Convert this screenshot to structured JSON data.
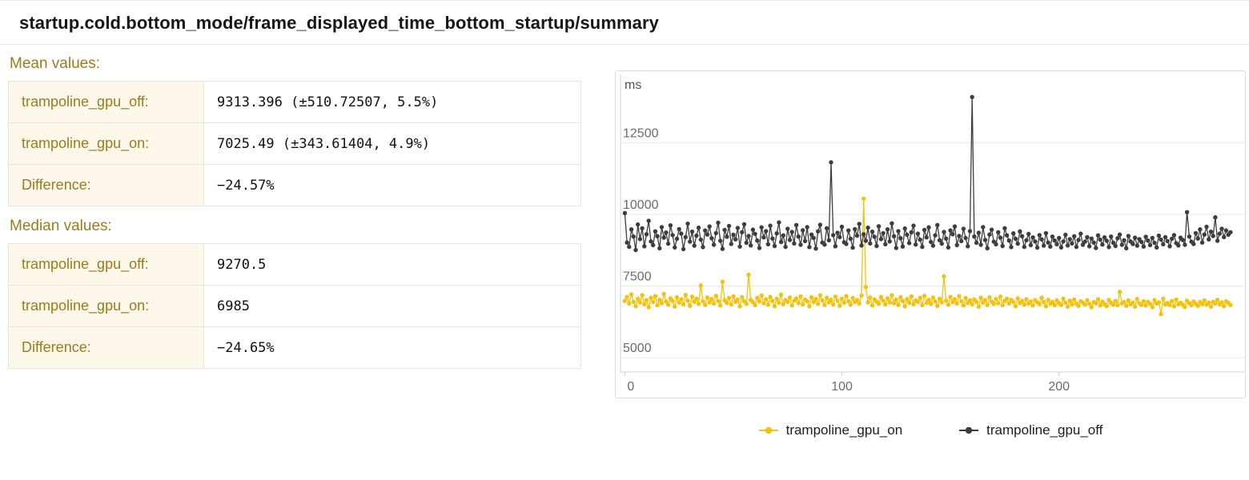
{
  "header": {
    "title": "startup.cold.bottom_mode/frame_displayed_time_bottom_startup/summary"
  },
  "sections": {
    "mean": {
      "heading": "Mean values:",
      "rows": [
        {
          "label": "trampoline_gpu_off:",
          "value": "9313.396 (±510.72507, 5.5%)"
        },
        {
          "label": "trampoline_gpu_on:",
          "value": "7025.49 (±343.61404, 4.9%)"
        },
        {
          "label": "Difference:",
          "value": "−24.57%"
        }
      ]
    },
    "median": {
      "heading": "Median values:",
      "rows": [
        {
          "label": "trampoline_gpu_off:",
          "value": "9270.5"
        },
        {
          "label": "trampoline_gpu_on:",
          "value": "6985"
        },
        {
          "label": "Difference:",
          "value": "−24.65%"
        }
      ]
    }
  },
  "chart_data": {
    "type": "line",
    "title": "",
    "xlabel": "",
    "ylabel": "ms",
    "xlim": [
      -2,
      282
    ],
    "ylim": [
      4500,
      14500
    ],
    "yticks": [
      5000,
      7500,
      10000,
      12500
    ],
    "xticks": [
      0,
      100,
      200
    ],
    "grid": true,
    "legend_position": "bottom",
    "colors": {
      "gpu_on": "#f4c20d",
      "gpu_off": "#3d3d3d",
      "grid": "#e6e6e6",
      "axis": "#cfcfcf",
      "tick_text": "#6b6b6b"
    },
    "series": [
      {
        "name": "trampoline_gpu_on",
        "color": "#f4c20d",
        "values": [
          6980,
          7120,
          6890,
          7210,
          6950,
          6800,
          7060,
          6930,
          7180,
          6870,
          7010,
          6760,
          7090,
          6940,
          7150,
          6830,
          7020,
          6900,
          7230,
          6960,
          6850,
          7070,
          6980,
          6780,
          7110,
          6920,
          7040,
          6860,
          7190,
          6990,
          6810,
          7130,
          6950,
          7060,
          6880,
          7520,
          6970,
          6840,
          7100,
          6930,
          7050,
          6890,
          7160,
          6980,
          6820,
          7650,
          7000,
          6910,
          7080,
          6860,
          7140,
          6950,
          7030,
          6790,
          7110,
          6970,
          6880,
          7900,
          7020,
          6940,
          6830,
          7090,
          6960,
          7170,
          6900,
          7040,
          6850,
          7120,
          6980,
          6800,
          7060,
          6920,
          7200,
          6870,
          7010,
          6950,
          7100,
          6820,
          6990,
          7070,
          6910,
          7140,
          6860,
          7030,
          6970,
          6790,
          7110,
          6940,
          7050,
          6880,
          7180,
          7000,
          6840,
          7090,
          6930,
          7020,
          6860,
          7130,
          6990,
          6810,
          7060,
          6920,
          7150,
          6970,
          6850,
          7080,
          6940,
          7010,
          6890,
          7170,
          10550,
          7470,
          6930,
          7100,
          6820,
          7040,
          6960,
          6880,
          7120,
          6990,
          6860,
          7070,
          6930,
          7180,
          6900,
          7030,
          6840,
          7110,
          6980,
          6790,
          7050,
          6920,
          7140,
          6870,
          7000,
          6950,
          7090,
          6830,
          7160,
          6910,
          7020,
          6880,
          7100,
          6960,
          6810,
          7060,
          6930,
          7840,
          6990,
          6850,
          7120,
          6940,
          7040,
          6890,
          7150,
          6970,
          6820,
          7080,
          6910,
          7000,
          6860,
          7030,
          6950,
          6780,
          7090,
          6920,
          7010,
          6840,
          7110,
          6960,
          6880,
          7050,
          6900,
          7130,
          6830,
          6980,
          7060,
          6890,
          7020,
          6940,
          6800,
          7070,
          6910,
          6980,
          6850,
          7040,
          6890,
          6960,
          6820,
          7010,
          6930,
          6870,
          7090,
          6940,
          6790,
          7020,
          6880,
          6950,
          6830,
          7000,
          6900,
          6840,
          7060,
          6920,
          6780,
          6990,
          6860,
          7030,
          6890,
          6810,
          6970,
          6920,
          6850,
          7010,
          6880,
          6760,
          6940,
          6900,
          7040,
          6820,
          6960,
          6870,
          6800,
          7020,
          6910,
          6850,
          6980,
          6830,
          7300,
          6890,
          6940,
          6810,
          7000,
          6870,
          6920,
          6780,
          7050,
          6900,
          6840,
          6970,
          6820,
          6950,
          6880,
          6760,
          7010,
          6890,
          6930,
          6520,
          7060,
          6860,
          6910,
          6840,
          6980,
          6790,
          7030,
          6870,
          6920,
          6850,
          6770,
          6990,
          6900,
          6830,
          6960,
          6880,
          6810,
          6940,
          6870,
          7000,
          6850,
          6920,
          6780,
          6950,
          6890,
          7020,
          6860,
          6930,
          6800,
          6970,
          6910,
          6840
        ]
      },
      {
        "name": "trampoline_gpu_off",
        "color": "#3d3d3d",
        "values": [
          10050,
          9020,
          8870,
          9480,
          9230,
          8760,
          9650,
          9140,
          9520,
          8890,
          9310,
          9780,
          9060,
          8930,
          9410,
          9240,
          8820,
          9560,
          9190,
          9370,
          8980,
          9620,
          9280,
          8850,
          9150,
          9490,
          9330,
          8790,
          9210,
          9680,
          9050,
          9400,
          8910,
          9260,
          9540,
          9120,
          8860,
          9440,
          9300,
          9580,
          9170,
          8940,
          9350,
          9710,
          9080,
          8800,
          9460,
          9220,
          9600,
          8970,
          9290,
          9130,
          9530,
          8880,
          9380,
          9660,
          9010,
          9250,
          8920,
          9470,
          9320,
          9090,
          8830,
          9550,
          9200,
          9420,
          8960,
          9610,
          9160,
          8900,
          9340,
          9720,
          9040,
          9270,
          8870,
          9500,
          9110,
          9390,
          8990,
          9630,
          9230,
          8940,
          9450,
          9070,
          9560,
          8860,
          9300,
          9180,
          8810,
          9410,
          9640,
          9020,
          8950,
          9520,
          9100,
          11820,
          9280,
          8890,
          9360,
          9210,
          9570,
          9030,
          8970,
          9440,
          9150,
          8840,
          9490,
          9260,
          9670,
          8920,
          9310,
          9080,
          9540,
          8990,
          9400,
          9220,
          8900,
          9590,
          9140,
          9350,
          8960,
          9480,
          9060,
          9690,
          9240,
          8830,
          9420,
          9170,
          8880,
          9510,
          9290,
          9000,
          9380,
          9610,
          8950,
          9330,
          9120,
          8870,
          9460,
          9200,
          9550,
          9040,
          8910,
          9270,
          9630,
          9100,
          8980,
          9390,
          9160,
          8850,
          9440,
          9310,
          9580,
          8930,
          9250,
          9070,
          9500,
          9180,
          8890,
          9420,
          14100,
          9230,
          9010,
          9360,
          8940,
          9560,
          9110,
          8820,
          9300,
          9470,
          9050,
          8960,
          9380,
          9190,
          8900,
          9520,
          9270,
          9090,
          8860,
          9340,
          9150,
          8980,
          9410,
          9240,
          8870,
          9100,
          9320,
          8930,
          9200,
          9060,
          8840,
          9280,
          9130,
          8910,
          9350,
          9020,
          8880,
          9230,
          9090,
          8960,
          9180,
          8850,
          9060,
          9290,
          8920,
          9140,
          8990,
          9240,
          8870,
          9110,
          9330,
          8940,
          9050,
          9210,
          8890,
          9160,
          9020,
          8830,
          9270,
          9120,
          8950,
          9200,
          9080,
          8860,
          9230,
          9010,
          8900,
          9170,
          9300,
          8940,
          9100,
          8820,
          9250,
          9060,
          8970,
          9190,
          8910,
          9140,
          9040,
          8880,
          9220,
          9090,
          8930,
          9180,
          9010,
          8850,
          9260,
          9120,
          8960,
          9210,
          9070,
          8890,
          9150,
          9280,
          9000,
          8920,
          9190,
          9110,
          8940,
          10080,
          9230,
          9050,
          8970,
          9350,
          9160,
          9480,
          9020,
          9300,
          9570,
          9130,
          9400,
          9250,
          9900,
          9080,
          9330,
          9500,
          9210,
          9440,
          9290,
          9380
        ]
      }
    ]
  }
}
